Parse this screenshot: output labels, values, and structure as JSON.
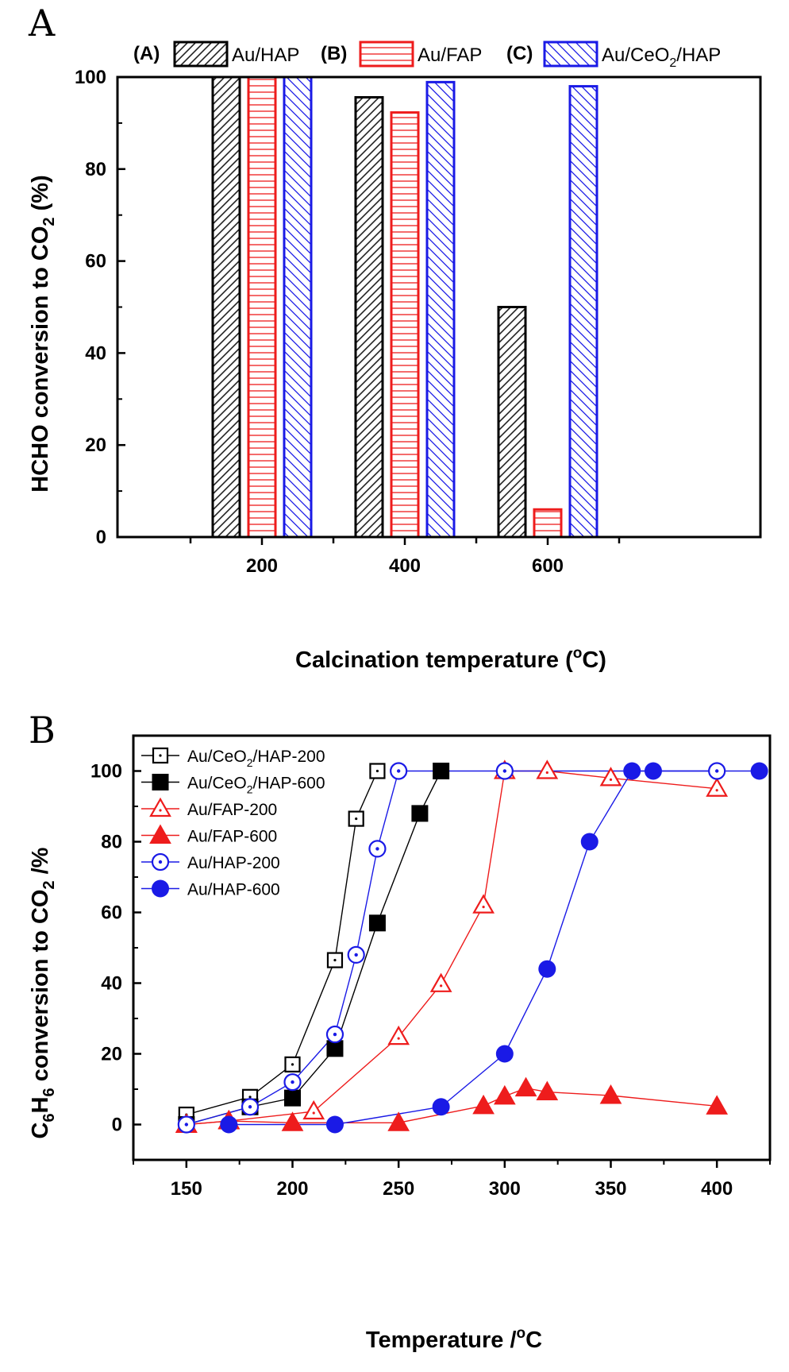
{
  "colors": {
    "black": "#000000",
    "red": "#ee1c1c",
    "blue": "#1a1ae6",
    "hatch_black": "#222222"
  },
  "chart_data": [
    {
      "panel": "A",
      "type": "bar",
      "xlabel_main": "Calcination temperature (",
      "xlabel_sup": "o",
      "xlabel_tail": "C)",
      "ylabel_main": "HCHO conversion to CO",
      "ylabel_sub": "2",
      "ylabel_tail": " (%)",
      "categories": [
        "200",
        "400",
        "600"
      ],
      "ylim": [
        0,
        100
      ],
      "yticks": [
        "0",
        "20",
        "40",
        "60",
        "80",
        "100"
      ],
      "legend_placement": "top",
      "series": [
        {
          "tag": "(A)",
          "name": "Au/HAP",
          "name_main": "Au/HAP",
          "name_sub": "",
          "name_tail": "",
          "color_key": "black",
          "pattern": "diagonal",
          "values": [
            100,
            95.6,
            50
          ]
        },
        {
          "tag": "(B)",
          "name": "Au/FAP",
          "name_main": "Au/FAP",
          "name_sub": "",
          "name_tail": "",
          "color_key": "red",
          "pattern": "horizontal",
          "values": [
            100,
            92.3,
            6
          ]
        },
        {
          "tag": "(C)",
          "name": "Au/CeO2/HAP",
          "name_main": "Au/CeO",
          "name_sub": "2",
          "name_tail": "/HAP",
          "color_key": "blue",
          "pattern": "backdiagonal",
          "values": [
            100,
            98.9,
            98
          ]
        }
      ]
    },
    {
      "panel": "B",
      "type": "line",
      "xlabel_main": "Temperature /",
      "xlabel_sup": "o",
      "xlabel_tail": "C",
      "ylabel_c": "C",
      "ylabel_6a": "6",
      "ylabel_h": "H",
      "ylabel_6b": "6",
      "ylabel_mid": " conversion to CO",
      "ylabel_sub": "2",
      "ylabel_tail": " /%",
      "xlim": [
        125,
        425
      ],
      "ylim": [
        -10,
        110
      ],
      "xticks": [
        "150",
        "200",
        "250",
        "300",
        "350",
        "400"
      ],
      "yticks": [
        "0",
        "20",
        "40",
        "60",
        "80",
        "100"
      ],
      "legend_placement": "top-left",
      "series": [
        {
          "name": "Au/CeO2/HAP-200",
          "name_main": "Au/CeO",
          "name_sub": "2",
          "name_tail": "/HAP-200",
          "color_key": "black",
          "marker": "square-open",
          "x": [
            150,
            180,
            200,
            220,
            230,
            240
          ],
          "y": [
            2.8,
            7.8,
            17,
            46.5,
            86.5,
            100
          ]
        },
        {
          "name": "Au/CeO2/HAP-600",
          "name_main": "Au/CeO",
          "name_sub": "2",
          "name_tail": "/HAP-600",
          "color_key": "black",
          "marker": "square-filled",
          "x": [
            150,
            180,
            200,
            220,
            240,
            260,
            270
          ],
          "y": [
            0,
            5,
            7.5,
            21.5,
            57,
            88,
            100
          ]
        },
        {
          "name": "Au/FAP-200",
          "name_main": "Au/FAP-200",
          "name_sub": "",
          "name_tail": "",
          "color_key": "red",
          "marker": "triangle-open",
          "x": [
            150,
            170,
            210,
            250,
            270,
            290,
            300,
            320,
            350,
            400
          ],
          "y": [
            0,
            1,
            3.7,
            24.8,
            39.7,
            62,
            100,
            100,
            98,
            95
          ]
        },
        {
          "name": "Au/FAP-600",
          "name_main": "Au/FAP-600",
          "name_sub": "",
          "name_tail": "",
          "color_key": "red",
          "marker": "triangle-filled",
          "x": [
            150,
            170,
            200,
            250,
            290,
            300,
            310,
            320,
            350,
            400
          ],
          "y": [
            0,
            1,
            0.5,
            0.5,
            5.3,
            8,
            10.3,
            9.2,
            8.2,
            5.2
          ]
        },
        {
          "name": "Au/HAP-200",
          "name_main": "Au/HAP-200",
          "name_sub": "",
          "name_tail": "",
          "color_key": "blue",
          "marker": "circle-dot",
          "x": [
            150,
            180,
            200,
            220,
            230,
            240,
            250,
            300,
            400
          ],
          "y": [
            0,
            5,
            12,
            25.5,
            48,
            78,
            100,
            100,
            100
          ]
        },
        {
          "name": "Au/HAP-600",
          "name_main": "Au/HAP-600",
          "name_sub": "",
          "name_tail": "",
          "color_key": "blue",
          "marker": "circle-filled",
          "x": [
            170,
            220,
            270,
            300,
            320,
            340,
            360,
            370,
            420
          ],
          "y": [
            0,
            0,
            5,
            20,
            44,
            80,
            100,
            100,
            100
          ]
        }
      ]
    }
  ]
}
